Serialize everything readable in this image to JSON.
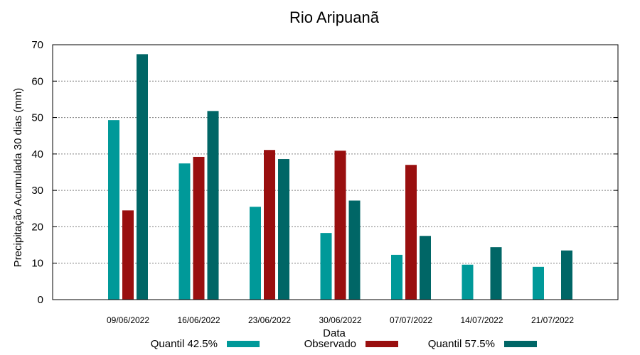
{
  "chart_data": {
    "type": "bar",
    "title": "Rio Aripuanã",
    "xlabel": "Data",
    "ylabel": "Precipitação Acumulada 30 dias (mm)",
    "ylim": [
      0,
      70
    ],
    "yticks": [
      0,
      10,
      20,
      30,
      40,
      50,
      60,
      70
    ],
    "grid": true,
    "legend_position": "bottom",
    "categories": [
      "09/06/2022",
      "16/06/2022",
      "23/06/2022",
      "30/06/2022",
      "07/07/2022",
      "14/07/2022",
      "21/07/2022"
    ],
    "series": [
      {
        "name": "Quantil 42.5%",
        "color": "#009999",
        "values": [
          49.3,
          37.4,
          25.5,
          18.3,
          12.3,
          9.6,
          9.0
        ]
      },
      {
        "name": "Observado",
        "color": "#990F0F",
        "values": [
          24.5,
          39.2,
          41.1,
          40.9,
          37.0,
          null,
          null
        ]
      },
      {
        "name": "Quantil 57.5%",
        "color": "#006666",
        "values": [
          67.4,
          51.8,
          38.6,
          27.2,
          17.5,
          14.4,
          13.5
        ]
      }
    ]
  }
}
